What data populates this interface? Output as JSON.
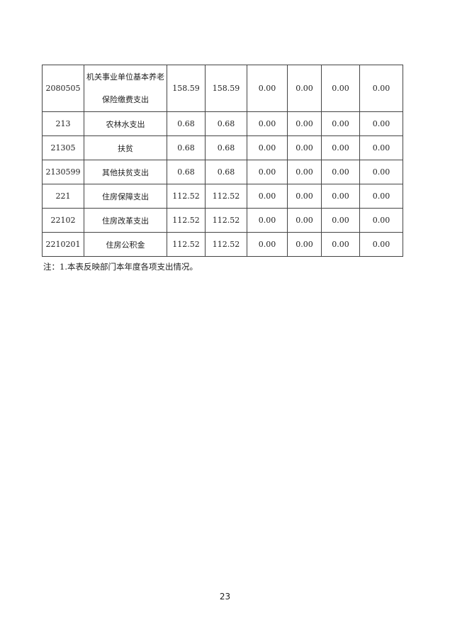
{
  "table": {
    "rows": [
      {
        "code": "2080505",
        "name_lines": [
          "机关事业单位基本养老",
          "保险缴费支出"
        ],
        "values": [
          "158.59",
          "158.59",
          "0.00",
          "0.00",
          "0.00",
          "0.00"
        ]
      },
      {
        "code": "213",
        "name": "农林水支出",
        "values": [
          "0.68",
          "0.68",
          "0.00",
          "0.00",
          "0.00",
          "0.00"
        ]
      },
      {
        "code": "21305",
        "name": "扶贫",
        "values": [
          "0.68",
          "0.68",
          "0.00",
          "0.00",
          "0.00",
          "0.00"
        ]
      },
      {
        "code": "2130599",
        "name": "其他扶贫支出",
        "values": [
          "0.68",
          "0.68",
          "0.00",
          "0.00",
          "0.00",
          "0.00"
        ]
      },
      {
        "code": "221",
        "name": "住房保障支出",
        "values": [
          "112.52",
          "112.52",
          "0.00",
          "0.00",
          "0.00",
          "0.00"
        ]
      },
      {
        "code": "22102",
        "name": "住房改革支出",
        "values": [
          "112.52",
          "112.52",
          "0.00",
          "0.00",
          "0.00",
          "0.00"
        ]
      },
      {
        "code": "2210201",
        "name": "住房公积金",
        "values": [
          "112.52",
          "112.52",
          "0.00",
          "0.00",
          "0.00",
          "0.00"
        ]
      }
    ]
  },
  "note": "注：1.本表反映部门本年度各项支出情况。",
  "page_number": "23"
}
